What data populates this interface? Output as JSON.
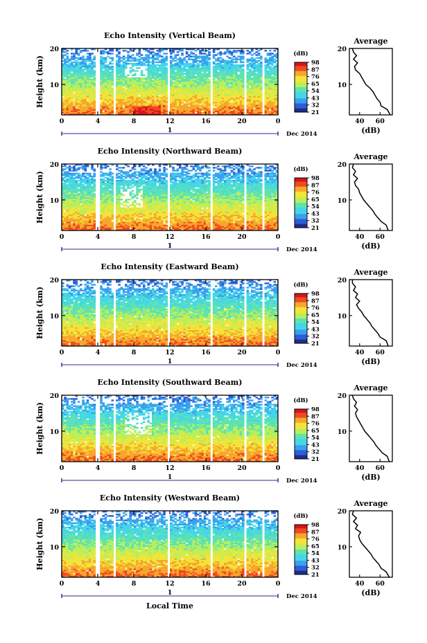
{
  "figure": {
    "x_axis_label": "Local Time",
    "date_label": "Dec 2014",
    "day_label": "1",
    "colorbar_unit": "(dB)",
    "colormap": [
      "#1f2c8c",
      "#2b5fd6",
      "#3aa0ee",
      "#44d6e8",
      "#5fe3b0",
      "#b8ef5a",
      "#f3e43a",
      "#f7a72b",
      "#ef4a22",
      "#d8141a"
    ]
  },
  "chart_data": [
    {
      "type": "heatmap",
      "title": "Echo Intensity (Vertical Beam)",
      "ylabel": "Height (km)",
      "xlabel": "Local Time",
      "x_ticks": [
        "0",
        "4",
        "8",
        "12",
        "16",
        "20",
        "0"
      ],
      "xlim": [
        0,
        24
      ],
      "y_ticks": [
        "10",
        "20"
      ],
      "ylim": [
        1.5,
        20
      ],
      "colorbar": {
        "label": "(dB)",
        "ticks": [
          "21",
          "32",
          "43",
          "54",
          "65",
          "76",
          "87",
          "98"
        ]
      },
      "profile": {
        "title": "Average",
        "xlabel": "(dB)",
        "x_ticks": [
          "40",
          "60"
        ],
        "y_ticks": [
          "10",
          "20"
        ],
        "height_km": [
          1.5,
          3,
          4,
          5,
          6,
          7,
          8,
          9,
          10,
          11,
          12,
          13,
          14,
          15,
          16,
          17,
          18,
          19,
          20
        ],
        "mean_db": [
          70,
          67,
          61,
          60,
          57,
          55,
          53,
          50,
          46,
          44,
          42,
          40,
          36,
          35,
          38,
          34,
          37,
          34,
          33
        ]
      }
    },
    {
      "type": "heatmap",
      "title": "Echo Intensity (Northward Beam)",
      "ylabel": "Height (km)",
      "xlabel": "Local Time",
      "x_ticks": [
        "0",
        "4",
        "8",
        "12",
        "16",
        "20",
        "0"
      ],
      "xlim": [
        0,
        24
      ],
      "y_ticks": [
        "10",
        "20"
      ],
      "ylim": [
        1.5,
        20
      ],
      "colorbar": {
        "label": "(dB)",
        "ticks": [
          "21",
          "32",
          "43",
          "54",
          "65",
          "76",
          "87",
          "98"
        ]
      },
      "profile": {
        "title": "Average",
        "xlabel": "(dB)",
        "x_ticks": [
          "40",
          "60"
        ],
        "y_ticks": [
          "10",
          "20"
        ],
        "height_km": [
          1.5,
          3,
          4,
          5,
          6,
          7,
          8,
          9,
          10,
          11,
          12,
          13,
          14,
          15,
          16,
          17,
          18,
          19,
          20
        ],
        "mean_db": [
          68,
          66,
          61,
          58,
          55,
          53,
          50,
          47,
          44,
          42,
          40,
          39,
          36,
          35,
          38,
          34,
          36,
          33,
          34
        ]
      }
    },
    {
      "type": "heatmap",
      "title": "Echo Intensity (Eastward Beam)",
      "ylabel": "Height (km)",
      "xlabel": "Local Time",
      "x_ticks": [
        "0",
        "4",
        "8",
        "12",
        "16",
        "20",
        "0"
      ],
      "xlim": [
        0,
        24
      ],
      "y_ticks": [
        "10",
        "20"
      ],
      "ylim": [
        1.5,
        20
      ],
      "colorbar": {
        "label": "(dB)",
        "ticks": [
          "21",
          "32",
          "43",
          "54",
          "65",
          "76",
          "87",
          "98"
        ]
      },
      "profile": {
        "title": "Average",
        "xlabel": "(dB)",
        "x_ticks": [
          "40",
          "60"
        ],
        "y_ticks": [
          "10",
          "20"
        ],
        "height_km": [
          1.5,
          3,
          4,
          5,
          6,
          7,
          8,
          9,
          10,
          11,
          12,
          13,
          14,
          15,
          16,
          17,
          18,
          19,
          20
        ],
        "mean_db": [
          68,
          66,
          60,
          58,
          55,
          52,
          50,
          47,
          44,
          42,
          39,
          37,
          40,
          36,
          38,
          34,
          36,
          33,
          33
        ]
      }
    },
    {
      "type": "heatmap",
      "title": "Echo Intensity (Southward Beam)",
      "ylabel": "Height (km)",
      "xlabel": "Local Time",
      "x_ticks": [
        "0",
        "4",
        "8",
        "12",
        "16",
        "20",
        "0"
      ],
      "xlim": [
        0,
        24
      ],
      "y_ticks": [
        "10",
        "20"
      ],
      "ylim": [
        1.5,
        20
      ],
      "colorbar": {
        "label": "(dB)",
        "ticks": [
          "21",
          "32",
          "43",
          "54",
          "65",
          "76",
          "87",
          "98"
        ]
      },
      "profile": {
        "title": "Average",
        "xlabel": "(dB)",
        "x_ticks": [
          "40",
          "60"
        ],
        "y_ticks": [
          "10",
          "20"
        ],
        "height_km": [
          1.5,
          3,
          4,
          5,
          6,
          7,
          8,
          9,
          10,
          11,
          12,
          13,
          14,
          15,
          16,
          17,
          18,
          19,
          20
        ],
        "mean_db": [
          69,
          67,
          62,
          59,
          56,
          54,
          51,
          48,
          45,
          43,
          41,
          39,
          37,
          36,
          38,
          35,
          37,
          34,
          33
        ]
      }
    },
    {
      "type": "heatmap",
      "title": "Echo Intensity (Westward Beam)",
      "ylabel": "Height (km)",
      "xlabel": "Local Time",
      "x_ticks": [
        "0",
        "4",
        "8",
        "12",
        "16",
        "20",
        "0"
      ],
      "xlim": [
        0,
        24
      ],
      "y_ticks": [
        "10",
        "20"
      ],
      "ylim": [
        1.5,
        20
      ],
      "colorbar": {
        "label": "(dB)",
        "ticks": [
          "21",
          "32",
          "43",
          "54",
          "65",
          "76",
          "87",
          "98"
        ]
      },
      "profile": {
        "title": "Average",
        "xlabel": "(dB)",
        "x_ticks": [
          "40",
          "60"
        ],
        "y_ticks": [
          "10",
          "20"
        ],
        "height_km": [
          1.5,
          3,
          4,
          5,
          6,
          7,
          8,
          9,
          10,
          11,
          12,
          13,
          14,
          15,
          16,
          17,
          18,
          19,
          20
        ],
        "mean_db": [
          69,
          66,
          61,
          59,
          56,
          53,
          51,
          48,
          45,
          42,
          40,
          39,
          41,
          36,
          38,
          34,
          37,
          33,
          34
        ]
      }
    }
  ]
}
